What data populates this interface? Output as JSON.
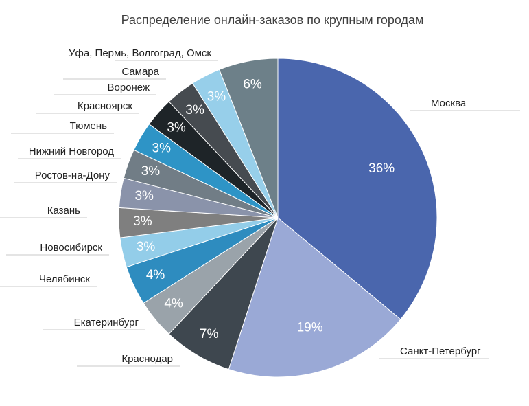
{
  "chart_data": {
    "type": "pie",
    "title": "Распределение онлайн-заказов по крупным городам",
    "categories": [
      "Москва",
      "Санкт-Петербург",
      "Краснодар",
      "Екатеринбург",
      "Челябинск",
      "Новосибирск",
      "Казань",
      "Ростов-на-Дону",
      "Нижний Новгород",
      "Тюмень",
      "Красноярск",
      "Воронеж",
      "Самара",
      "Уфа, Пермь, Волгоград, Омск"
    ],
    "values": [
      36,
      19,
      7,
      4,
      4,
      3,
      3,
      3,
      3,
      3,
      3,
      3,
      3,
      6
    ],
    "value_labels": [
      "36%",
      "19%",
      "7%",
      "4%",
      "4%",
      "3%",
      "3%",
      "3%",
      "3%",
      "3%",
      "3%",
      "3%",
      "3%",
      "6%"
    ],
    "colors": [
      "#4a66ad",
      "#9aa9d6",
      "#3e474f",
      "#9aa3aa",
      "#2e8cbf",
      "#93cde9",
      "#7f7f7f",
      "#8a93aa",
      "#717d86",
      "#2e94c6",
      "#1e2428",
      "#464b50",
      "#97cfea",
      "#6d8089"
    ]
  }
}
